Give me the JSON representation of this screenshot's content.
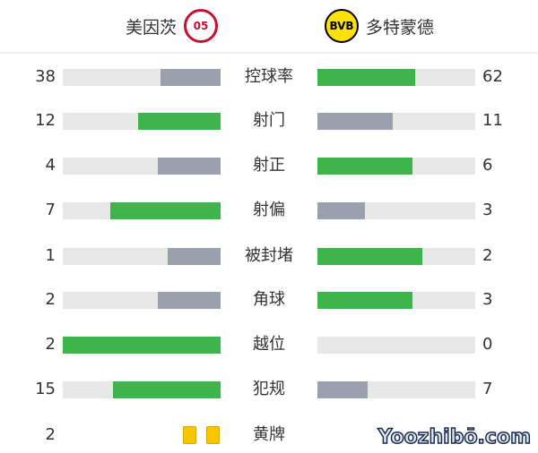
{
  "home": {
    "name": "美因茨",
    "logo_icon": "mainz-crest-icon",
    "logo_text": "05",
    "color": "#c8102e"
  },
  "away": {
    "name": "多特蒙德",
    "logo_icon": "bvb-crest-icon",
    "logo_text": "BVB",
    "color": "#fde100"
  },
  "colors": {
    "higher": "#3db54a",
    "lower": "#9aa0ae",
    "track": "#e8e8e8"
  },
  "stats": [
    {
      "label": "控球率",
      "home": 38,
      "away": 62
    },
    {
      "label": "射门",
      "home": 12,
      "away": 11
    },
    {
      "label": "射正",
      "home": 4,
      "away": 6
    },
    {
      "label": "射偏",
      "home": 7,
      "away": 3
    },
    {
      "label": "被封堵",
      "home": 1,
      "away": 2
    },
    {
      "label": "角球",
      "home": 2,
      "away": 3
    },
    {
      "label": "越位",
      "home": 2,
      "away": 0
    },
    {
      "label": "犯规",
      "home": 15,
      "away": 7
    }
  ],
  "yellow_cards": {
    "label": "黄牌",
    "home": 2,
    "home_cards": 2
  },
  "watermark": "Yoozhibō.com"
}
